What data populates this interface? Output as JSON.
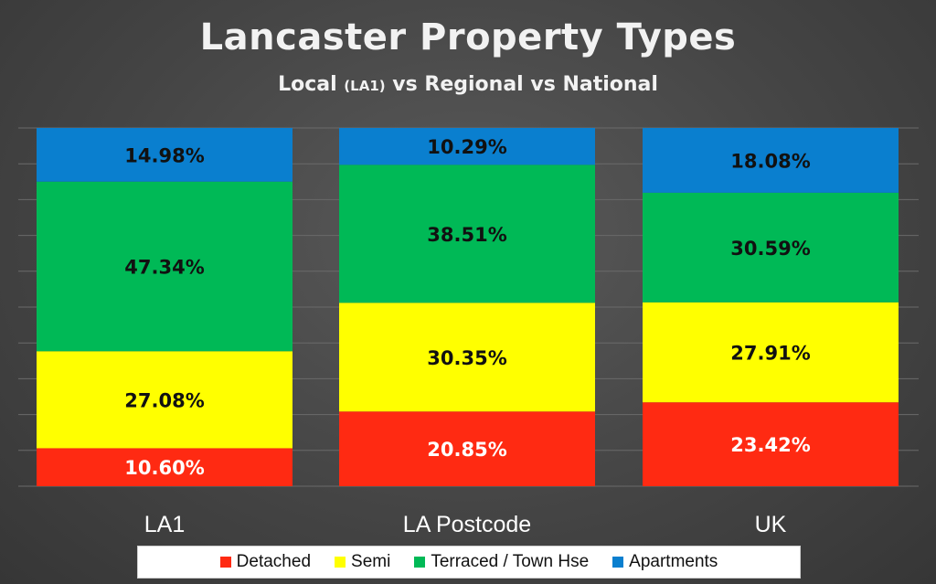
{
  "title": "Lancaster Property Types",
  "subtitle": {
    "main": "Local",
    "small": "(LA1)",
    "rest": "vs Regional vs National"
  },
  "colors": {
    "Detached": "#ff2a12",
    "Semi": "#ffff00",
    "Terraced / Town Hse": "#00b956",
    "Apartments": "#0a7fcf"
  },
  "chart_data": {
    "type": "bar",
    "stacked": true,
    "categories": [
      "LA1",
      "LA Postcode",
      "UK"
    ],
    "series": [
      {
        "name": "Detached",
        "values": [
          10.6,
          20.85,
          23.42
        ],
        "labels": [
          "10.60%",
          "20.85%",
          "23.42%"
        ],
        "label_color": "#ffffff"
      },
      {
        "name": "Semi",
        "values": [
          27.08,
          30.35,
          27.91
        ],
        "labels": [
          "27.08%",
          "30.35%",
          "27.91%"
        ],
        "label_color": "#111111"
      },
      {
        "name": "Terraced / Town Hse",
        "values": [
          47.34,
          38.51,
          30.59
        ],
        "labels": [
          "47.34%",
          "38.51%",
          "30.59%"
        ],
        "label_color": "#111111"
      },
      {
        "name": "Apartments",
        "values": [
          14.98,
          10.29,
          18.08
        ],
        "labels": [
          "14.98%",
          "10.29%",
          "18.08%"
        ],
        "label_color": "#111111"
      }
    ],
    "ylim": [
      0,
      100
    ],
    "grid": true,
    "legend": "bottom"
  }
}
